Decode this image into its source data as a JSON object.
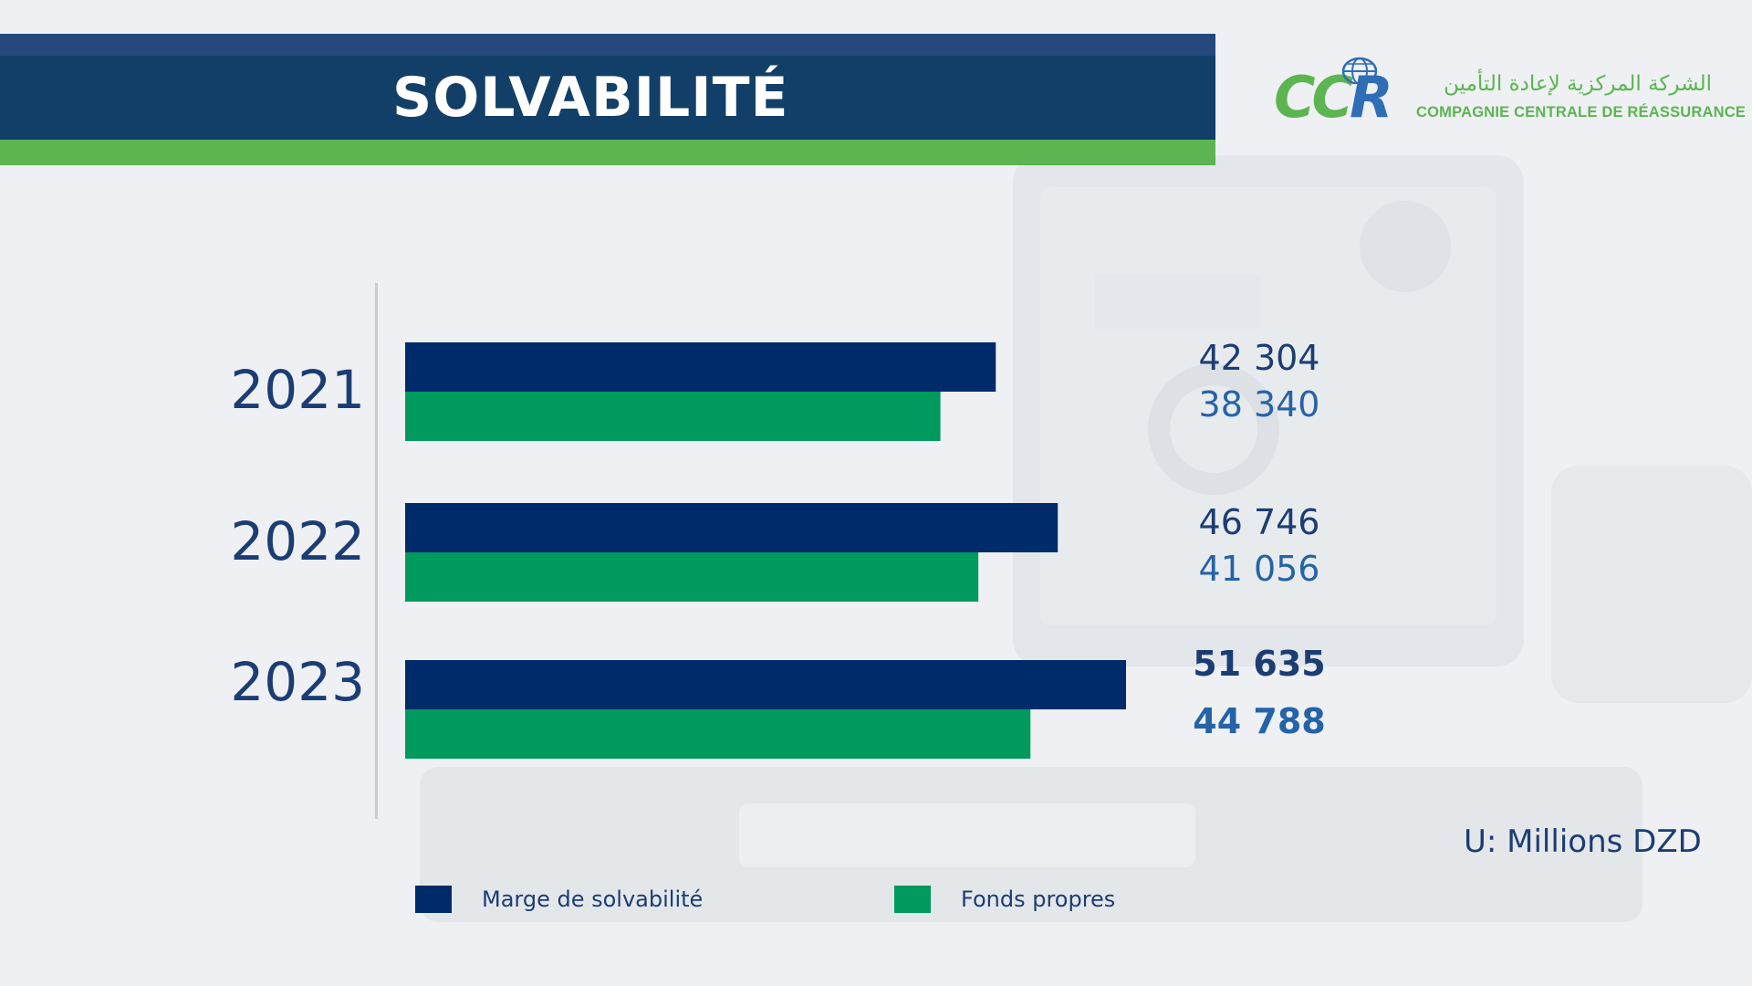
{
  "header": {
    "title": "SOLVABILITÉ"
  },
  "logo": {
    "letters_green": "CC",
    "letters_blue": "R",
    "arabic_name": "الشركة المركزية لإعادة التأمين",
    "french_name": "COMPAGNIE CENTRALE DE RÉASSURANCE"
  },
  "colors": {
    "navy": "#002b6b",
    "green": "#009a5e",
    "label_dark": "#1c3d73",
    "label_blue": "#2563a8",
    "brand_green": "#5cb550"
  },
  "chart_data": {
    "type": "bar",
    "orientation": "horizontal",
    "categories": [
      "2021",
      "2022",
      "2023"
    ],
    "series": [
      {
        "name": "Marge de solvabilité",
        "values": [
          42304,
          46746,
          51635
        ],
        "labels": [
          "42 304",
          "46 746",
          "51 635"
        ],
        "color": "#002b6b"
      },
      {
        "name": "Fonds propres",
        "values": [
          38340,
          41056,
          44788
        ],
        "labels": [
          "38 340",
          "41 056",
          "44 788"
        ],
        "color": "#009a5e"
      }
    ],
    "emphasized_category": "2023",
    "unit_note": "U: Millions DZD",
    "legend_position": "bottom",
    "grid": false
  }
}
